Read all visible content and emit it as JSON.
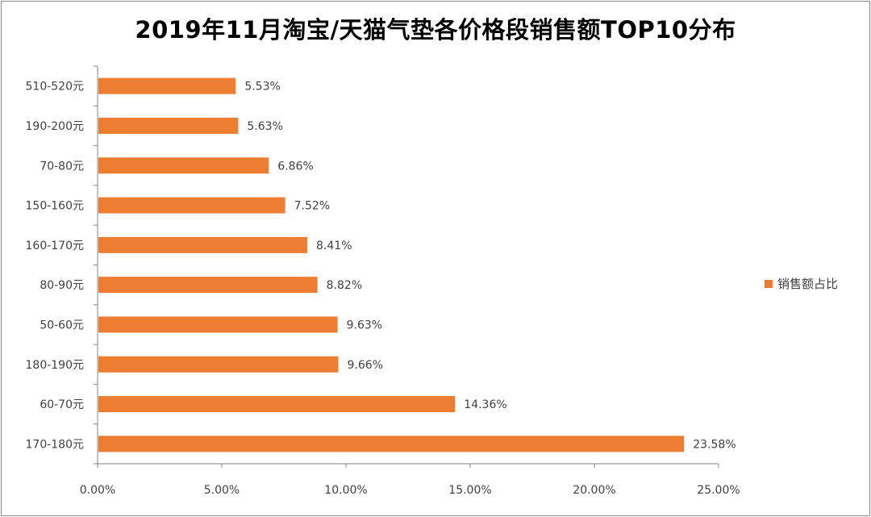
{
  "chart_data": {
    "type": "bar",
    "orientation": "horizontal",
    "title": "2019年11月淘宝/天猫气垫各价格段销售额TOP10分布",
    "categories": [
      "510-520元",
      "190-200元",
      "70-80元",
      "150-160元",
      "160-170元",
      "80-90元",
      "50-60元",
      "180-190元",
      "60-70元",
      "170-180元"
    ],
    "series": [
      {
        "name": "销售额占比",
        "values": [
          5.53,
          5.63,
          6.86,
          7.52,
          8.41,
          8.82,
          9.63,
          9.66,
          14.36,
          23.58
        ],
        "labels": [
          "5.53%",
          "5.63%",
          "6.86%",
          "7.52%",
          "8.41%",
          "8.82%",
          "9.63%",
          "9.66%",
          "14.36%",
          "23.58%"
        ],
        "color": "#ED7D31"
      }
    ],
    "x_ticks": [
      "0.00%",
      "5.00%",
      "10.00%",
      "15.00%",
      "20.00%",
      "25.00%"
    ],
    "xlim": [
      0,
      25
    ],
    "grid": false,
    "legend_position": "right"
  }
}
